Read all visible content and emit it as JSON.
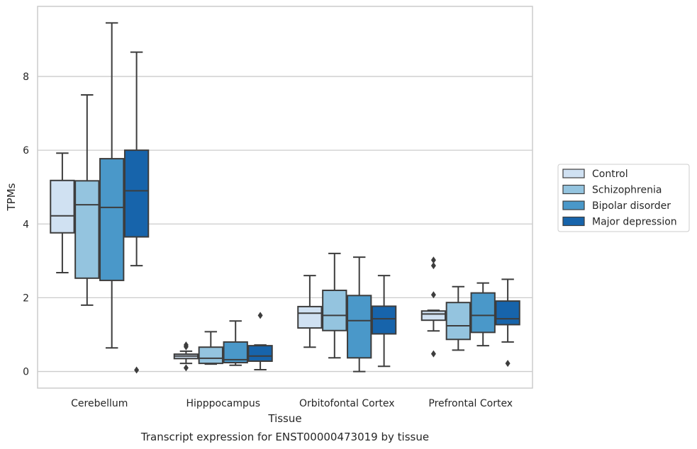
{
  "chart_data": {
    "type": "box",
    "caption": "Transcript expression for ENST00000473019 by tissue",
    "xlabel": "Tissue",
    "ylabel": "TPMs",
    "ylim": [
      -0.45,
      9.9
    ],
    "yticks": [
      0,
      2,
      4,
      6,
      8
    ],
    "grid": "horizontal",
    "legend_position": "right",
    "categories": [
      "Cerebellum",
      "Hipppocampus",
      "Orbitofontal Cortex",
      "Prefrontal Cortex"
    ],
    "series": [
      {
        "name": "Control",
        "color": "#d0e1f2",
        "boxes": [
          {
            "whislo": 2.68,
            "q1": 3.76,
            "med": 4.22,
            "q3": 5.18,
            "whishi": 5.92,
            "fliers": []
          },
          {
            "whislo": 0.22,
            "q1": 0.35,
            "med": 0.42,
            "q3": 0.47,
            "whishi": 0.55,
            "fliers": [
              0.72,
              0.67,
              0.1
            ]
          },
          {
            "whislo": 0.66,
            "q1": 1.18,
            "med": 1.58,
            "q3": 1.76,
            "whishi": 2.6,
            "fliers": []
          },
          {
            "whislo": 1.1,
            "q1": 1.39,
            "med": 1.56,
            "q3": 1.64,
            "whishi": 1.66,
            "fliers": [
              3.02,
              2.87,
              2.08,
              0.48
            ]
          }
        ]
      },
      {
        "name": "Schizophrenia",
        "color": "#94c4df",
        "boxes": [
          {
            "whislo": 1.8,
            "q1": 2.53,
            "med": 4.52,
            "q3": 5.17,
            "whishi": 7.5,
            "fliers": []
          },
          {
            "whislo": 0.2,
            "q1": 0.22,
            "med": 0.36,
            "q3": 0.66,
            "whishi": 1.08,
            "fliers": []
          },
          {
            "whislo": 0.37,
            "q1": 1.11,
            "med": 1.52,
            "q3": 2.2,
            "whishi": 3.2,
            "fliers": []
          },
          {
            "whislo": 0.58,
            "q1": 0.87,
            "med": 1.24,
            "q3": 1.87,
            "whishi": 2.3,
            "fliers": []
          }
        ]
      },
      {
        "name": "Bipolar disorder",
        "color": "#4a98c9",
        "boxes": [
          {
            "whislo": 0.64,
            "q1": 2.47,
            "med": 4.45,
            "q3": 5.77,
            "whishi": 9.45,
            "fliers": []
          },
          {
            "whislo": 0.17,
            "q1": 0.24,
            "med": 0.32,
            "q3": 0.8,
            "whishi": 1.37,
            "fliers": []
          },
          {
            "whislo": 0.0,
            "q1": 0.37,
            "med": 1.38,
            "q3": 2.06,
            "whishi": 3.1,
            "fliers": []
          },
          {
            "whislo": 0.7,
            "q1": 1.06,
            "med": 1.52,
            "q3": 2.13,
            "whishi": 2.4,
            "fliers": []
          }
        ]
      },
      {
        "name": "Major depression",
        "color": "#1764ab",
        "boxes": [
          {
            "whislo": 2.87,
            "q1": 3.65,
            "med": 4.9,
            "q3": 6.0,
            "whishi": 8.66,
            "fliers": [
              0.04
            ]
          },
          {
            "whislo": 0.05,
            "q1": 0.28,
            "med": 0.42,
            "q3": 0.7,
            "whishi": 0.72,
            "fliers": [
              1.52
            ]
          },
          {
            "whislo": 0.14,
            "q1": 1.02,
            "med": 1.43,
            "q3": 1.77,
            "whishi": 2.6,
            "fliers": []
          },
          {
            "whislo": 0.8,
            "q1": 1.27,
            "med": 1.43,
            "q3": 1.91,
            "whishi": 2.5,
            "fliers": [
              0.22
            ]
          }
        ]
      }
    ]
  }
}
